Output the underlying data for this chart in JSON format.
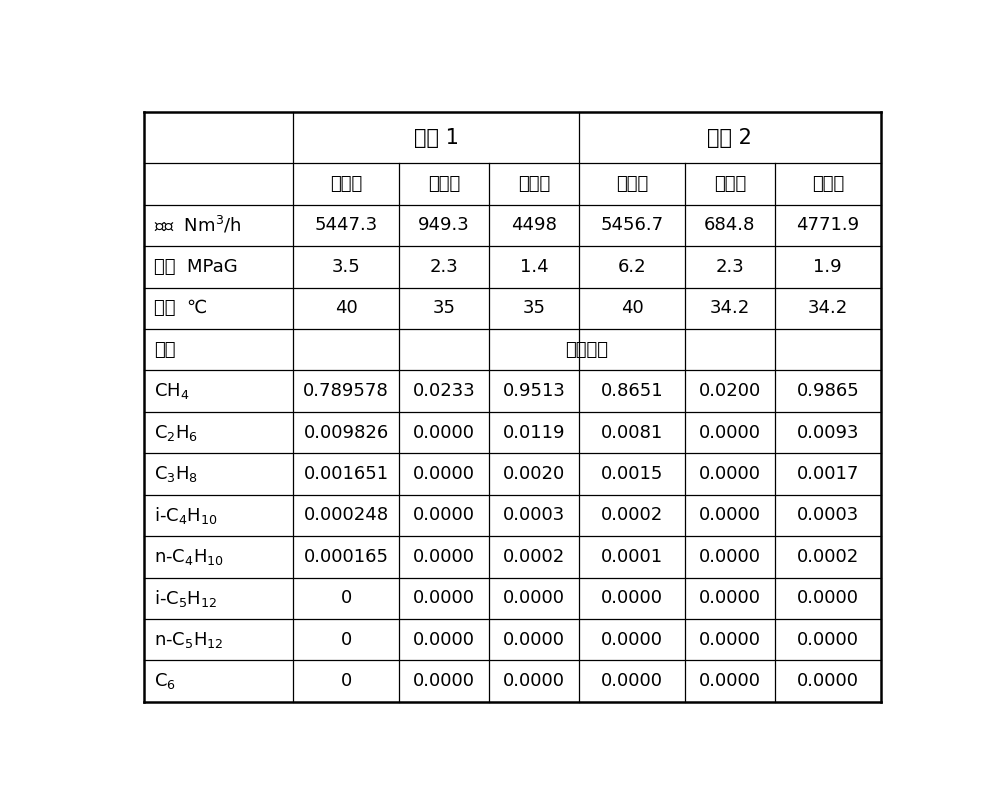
{
  "background_color": "#ffffff",
  "line_color": "#000000",
  "text_color": "#000000",
  "header1": [
    "实例 1",
    "实例 2"
  ],
  "header2": [
    "原料气",
    "塔顶气",
    "产品气",
    "原料气",
    "塔顶气",
    "产品气"
  ],
  "row_labels": [
    "流量  Nm³/h",
    "压力  MPaG",
    "温度  ℃",
    "组成",
    "CH₄",
    "C₂H₆",
    "C₃H₈",
    "i-C₄H₁₀",
    "n-C₄H₁₀",
    "i-C₅H₁₂",
    "n-C₅H₁₂",
    "C₆"
  ],
  "row_labels_latex": [
    "流量  Nm$^3$/h",
    "压力  MPaG",
    "温度  ℃",
    "组成",
    "CH$_4$",
    "C$_2$H$_6$",
    "C$_3$H$_8$",
    "i-C$_4$H$_{10}$",
    "n-C$_4$H$_{10}$",
    "i-C$_5$H$_{12}$",
    "n-C$_5$H$_{12}$",
    "C$_6$"
  ],
  "row_data": [
    [
      "5447.3",
      "949.3",
      "4498",
      "5456.7",
      "684.8",
      "4771.9"
    ],
    [
      "3.5",
      "2.3",
      "1.4",
      "6.2",
      "2.3",
      "1.9"
    ],
    [
      "40",
      "35",
      "35",
      "40",
      "34.2",
      "34.2"
    ],
    [
      "摩尔分率",
      "",
      "",
      "",
      "",
      ""
    ],
    [
      "0.789578",
      "0.0233",
      "0.9513",
      "0.8651",
      "0.0200",
      "0.9865"
    ],
    [
      "0.009826",
      "0.0000",
      "0.0119",
      "0.0081",
      "0.0000",
      "0.0093"
    ],
    [
      "0.001651",
      "0.0000",
      "0.0020",
      "0.0015",
      "0.0000",
      "0.0017"
    ],
    [
      "0.000248",
      "0.0000",
      "0.0003",
      "0.0002",
      "0.0000",
      "0.0003"
    ],
    [
      "0.000165",
      "0.0000",
      "0.0002",
      "0.0001",
      "0.0000",
      "0.0002"
    ],
    [
      "0",
      "0.0000",
      "0.0000",
      "0.0000",
      "0.0000",
      "0.0000"
    ],
    [
      "0",
      "0.0000",
      "0.0000",
      "0.0000",
      "0.0000",
      "0.0000"
    ],
    [
      "0",
      "0.0000",
      "0.0000",
      "0.0000",
      "0.0000",
      "0.0000"
    ]
  ],
  "font_size_header1": 15,
  "font_size_header2": 13,
  "font_size_data": 13,
  "lw_outer": 1.8,
  "lw_inner": 0.9
}
